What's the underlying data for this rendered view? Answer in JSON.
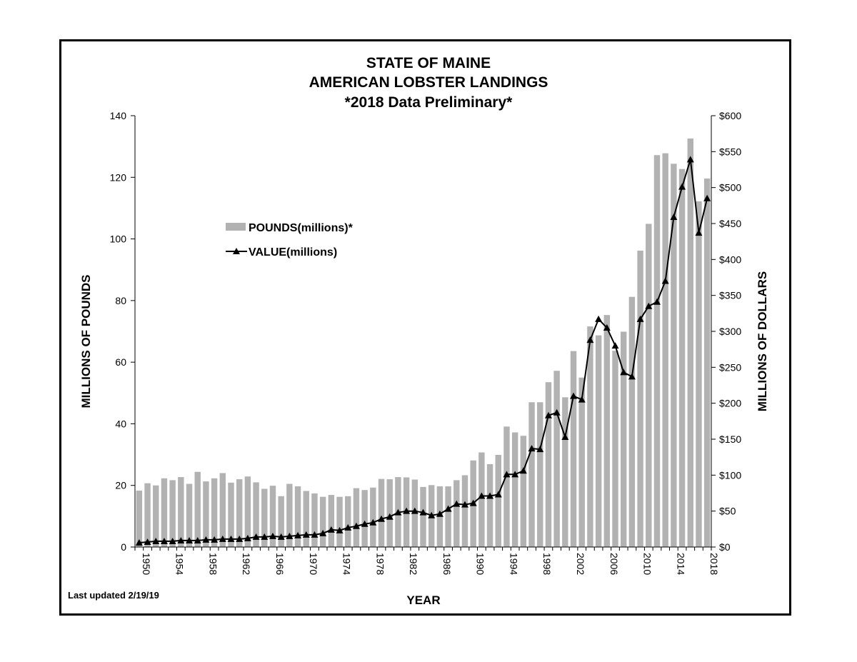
{
  "chart_data": {
    "type": "bar+line",
    "title": [
      "STATE OF MAINE",
      "AMERICAN LOBSTER LANDINGS",
      "*2018 Data Preliminary*"
    ],
    "xlabel": "YEAR",
    "ylabel_left": "MILLIONS OF POUNDS",
    "ylabel_right": "MILLIONS OF DOLLARS",
    "ylim_left": [
      0,
      140
    ],
    "ylim_right": [
      0,
      600
    ],
    "yticks_left": [
      "0",
      "20",
      "40",
      "60",
      "80",
      "100",
      "120",
      "140"
    ],
    "yticks_right": [
      "$0",
      "$50",
      "$100",
      "$150",
      "$200",
      "$250",
      "$300",
      "$350",
      "$400",
      "$450",
      "$500",
      "$550",
      "$600"
    ],
    "xtick_labels": [
      "1950",
      "1954",
      "1958",
      "1962",
      "1966",
      "1970",
      "1974",
      "1978",
      "1982",
      "1986",
      "1990",
      "1994",
      "1998",
      "2002",
      "2006",
      "2010",
      "2014",
      "2018"
    ],
    "grid": false,
    "legend_position": "upper-left",
    "note": "Last updated 2/19/19",
    "years": [
      1950,
      1951,
      1952,
      1953,
      1954,
      1955,
      1956,
      1957,
      1958,
      1959,
      1960,
      1961,
      1962,
      1963,
      1964,
      1965,
      1966,
      1967,
      1968,
      1969,
      1970,
      1971,
      1972,
      1973,
      1974,
      1975,
      1976,
      1977,
      1978,
      1979,
      1980,
      1981,
      1982,
      1983,
      1984,
      1985,
      1986,
      1987,
      1988,
      1989,
      1990,
      1991,
      1992,
      1993,
      1994,
      1995,
      1996,
      1997,
      1998,
      1999,
      2000,
      2001,
      2002,
      2003,
      2004,
      2005,
      2006,
      2007,
      2008,
      2009,
      2010,
      2011,
      2012,
      2013,
      2014,
      2015,
      2016,
      2017,
      2018
    ],
    "series": [
      {
        "name": "POUNDS(millions)*",
        "kind": "bar",
        "axis": "left",
        "color": "#b2b2b2",
        "values": [
          18.3,
          20.7,
          20.0,
          22.3,
          21.7,
          22.7,
          20.5,
          24.4,
          21.3,
          22.3,
          24.0,
          20.9,
          22.0,
          22.9,
          21.0,
          18.9,
          19.9,
          16.5,
          20.5,
          19.7,
          18.2,
          17.4,
          16.3,
          16.9,
          16.3,
          16.5,
          19.1,
          18.5,
          19.3,
          22.1,
          22.0,
          22.7,
          22.6,
          21.9,
          19.5,
          20.1,
          19.7,
          19.7,
          21.7,
          23.3,
          28.1,
          30.7,
          26.9,
          29.9,
          39.1,
          37.2,
          36.1,
          47.0,
          47.0,
          53.5,
          57.2,
          48.6,
          63.6,
          55.0,
          71.6,
          68.7,
          75.3,
          63.7,
          69.9,
          81.2,
          96.2,
          104.9,
          127.2,
          127.8,
          124.4,
          122.7,
          132.6,
          112.2,
          119.6
        ]
      },
      {
        "name": "VALUE(millions)",
        "kind": "line",
        "axis": "right",
        "color": "#000000",
        "values": [
          6,
          7,
          8,
          8,
          8,
          9,
          9,
          9,
          10,
          10,
          11,
          11,
          11,
          12,
          14,
          14,
          15,
          14,
          15,
          16,
          17,
          17,
          19,
          24,
          23,
          27,
          29,
          32,
          34,
          39,
          42,
          48,
          50,
          50,
          48,
          44,
          46,
          53,
          60,
          59,
          61,
          71,
          71,
          73,
          101,
          101,
          106,
          137,
          136,
          183,
          187,
          153,
          210,
          205,
          288,
          317,
          305,
          280,
          243,
          237,
          317,
          335,
          341,
          370,
          459,
          501,
          539,
          437,
          485
        ]
      }
    ]
  }
}
